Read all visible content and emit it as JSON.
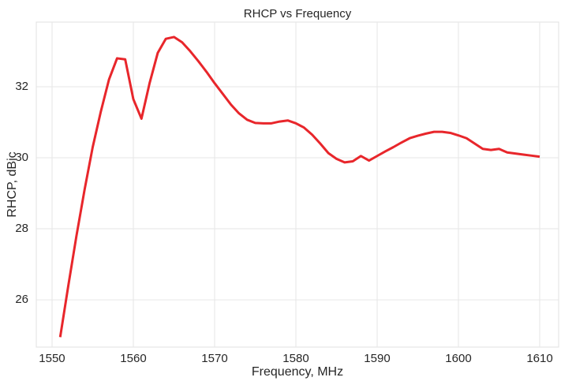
{
  "chart_data": {
    "type": "line",
    "title": "RHCP vs Frequency",
    "x_label": "Frequency, MHz",
    "y_label": "RHCP, dBic",
    "x": [
      1551,
      1552,
      1553,
      1554,
      1555,
      1556,
      1557,
      1558,
      1559,
      1560,
      1561,
      1562,
      1563,
      1564,
      1565,
      1566,
      1567,
      1568,
      1569,
      1570,
      1571,
      1572,
      1573,
      1574,
      1575,
      1576,
      1577,
      1578,
      1579,
      1580,
      1581,
      1582,
      1583,
      1584,
      1585,
      1586,
      1587,
      1588,
      1589,
      1590,
      1591,
      1592,
      1593,
      1594,
      1595,
      1596,
      1597,
      1598,
      1599,
      1600,
      1601,
      1602,
      1603,
      1604,
      1605,
      1606,
      1607,
      1608,
      1609,
      1610
    ],
    "series": [
      {
        "name": "RHCP",
        "color": "#e8262b",
        "values": [
          24.95,
          26.4,
          27.8,
          29.1,
          30.3,
          31.3,
          32.2,
          32.8,
          32.77,
          31.65,
          31.1,
          32.1,
          32.95,
          33.35,
          33.4,
          33.25,
          33.0,
          32.72,
          32.42,
          32.1,
          31.8,
          31.5,
          31.25,
          31.07,
          30.98,
          30.97,
          30.97,
          31.02,
          31.05,
          30.97,
          30.85,
          30.65,
          30.4,
          30.13,
          29.97,
          29.87,
          29.9,
          30.05,
          29.92,
          30.05,
          30.18,
          30.3,
          30.43,
          30.55,
          30.62,
          30.68,
          30.73,
          30.73,
          30.7,
          30.63,
          30.55,
          30.4,
          30.25,
          30.22,
          30.25,
          30.15,
          30.12,
          30.09,
          30.06,
          30.03
        ]
      }
    ],
    "xlim": [
      1548.06,
      1612.33
    ],
    "xticks": [
      1550,
      1560,
      1570,
      1580,
      1590,
      1600,
      1610
    ],
    "ylim": [
      24.67,
      33.82
    ],
    "yticks": [
      26,
      28,
      30,
      32
    ],
    "grid": true
  }
}
